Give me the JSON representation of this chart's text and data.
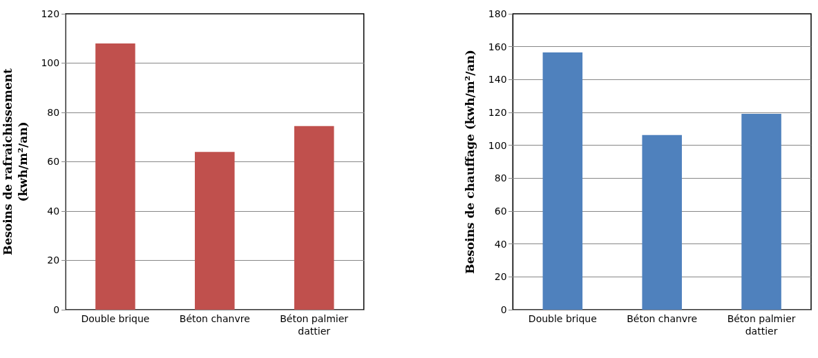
{
  "chart_data": [
    {
      "type": "bar",
      "categories": [
        "Double brique",
        "Béton chanvre",
        "Béton palmier dattier"
      ],
      "values": [
        108,
        64,
        74.5
      ],
      "color": "#c0504d",
      "ylabel": "Besoins de rafraichissement (kwh/m²/an)",
      "ylim": [
        0,
        120
      ],
      "yticks": [
        0,
        20,
        40,
        60,
        80,
        100,
        120
      ],
      "grid": "y"
    },
    {
      "type": "bar",
      "categories": [
        "Double brique",
        "Béton chanvre",
        "Béton palmier dattier"
      ],
      "values": [
        156.5,
        106.3,
        119.2
      ],
      "color": "#4f81bd",
      "ylabel": "Besoins de chauffage (kwh/m²/an)",
      "ylim": [
        0,
        180
      ],
      "yticks": [
        0,
        20,
        40,
        60,
        80,
        100,
        120,
        140,
        160,
        180
      ],
      "grid": "y"
    }
  ]
}
